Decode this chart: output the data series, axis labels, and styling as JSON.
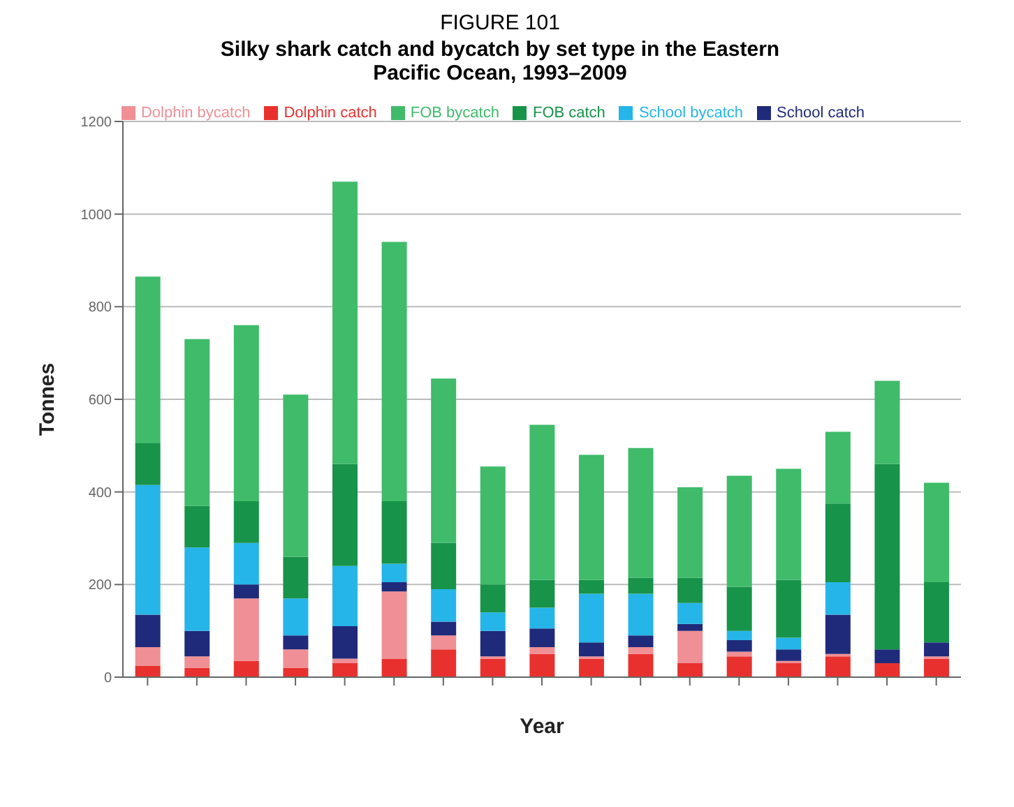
{
  "chart_data": {
    "type": "bar",
    "subtitle": "FIGURE 101",
    "title": "Silky shark catch and bycatch by set type in the Eastern Pacific Ocean, 1993–2009",
    "xlabel": "Year",
    "ylabel": "Tonnes",
    "categories": [
      null,
      null,
      null,
      null,
      null,
      null,
      null,
      null,
      null,
      null,
      null,
      null,
      null,
      null,
      null,
      null,
      null
    ],
    "stacked": true,
    "ylim": [
      0,
      1200
    ],
    "yticks": [
      0,
      200,
      400,
      600,
      800,
      1000,
      1200
    ],
    "grid": "y",
    "legend": "top",
    "series": [
      {
        "name": "Dolphin catch",
        "color": "#e8312f",
        "values": [
          25,
          20,
          35,
          20,
          30,
          40,
          60,
          40,
          50,
          40,
          50,
          30,
          45,
          30,
          45,
          30,
          40
        ]
      },
      {
        "name": "Dolphin bycatch",
        "color": "#f08f95",
        "values": [
          40,
          25,
          135,
          40,
          10,
          145,
          30,
          5,
          15,
          5,
          15,
          70,
          10,
          5,
          5,
          0,
          5
        ]
      },
      {
        "name": "School catch",
        "color": "#1f2a7a",
        "values": [
          70,
          55,
          30,
          30,
          70,
          20,
          30,
          55,
          40,
          30,
          25,
          15,
          25,
          25,
          85,
          30,
          30
        ]
      },
      {
        "name": "School bycatch",
        "color": "#25b5e8",
        "values": [
          280,
          180,
          90,
          80,
          130,
          40,
          70,
          40,
          45,
          105,
          90,
          45,
          20,
          25,
          70,
          0,
          0
        ]
      },
      {
        "name": "FOB catch",
        "color": "#17934a",
        "values": [
          90,
          90,
          90,
          90,
          220,
          135,
          100,
          60,
          60,
          30,
          35,
          55,
          95,
          125,
          170,
          400,
          130
        ]
      },
      {
        "name": "FOB bycatch",
        "color": "#3fbb6a",
        "values": [
          360,
          360,
          380,
          350,
          610,
          560,
          355,
          255,
          335,
          270,
          280,
          195,
          240,
          240,
          155,
          180,
          215
        ]
      }
    ]
  }
}
